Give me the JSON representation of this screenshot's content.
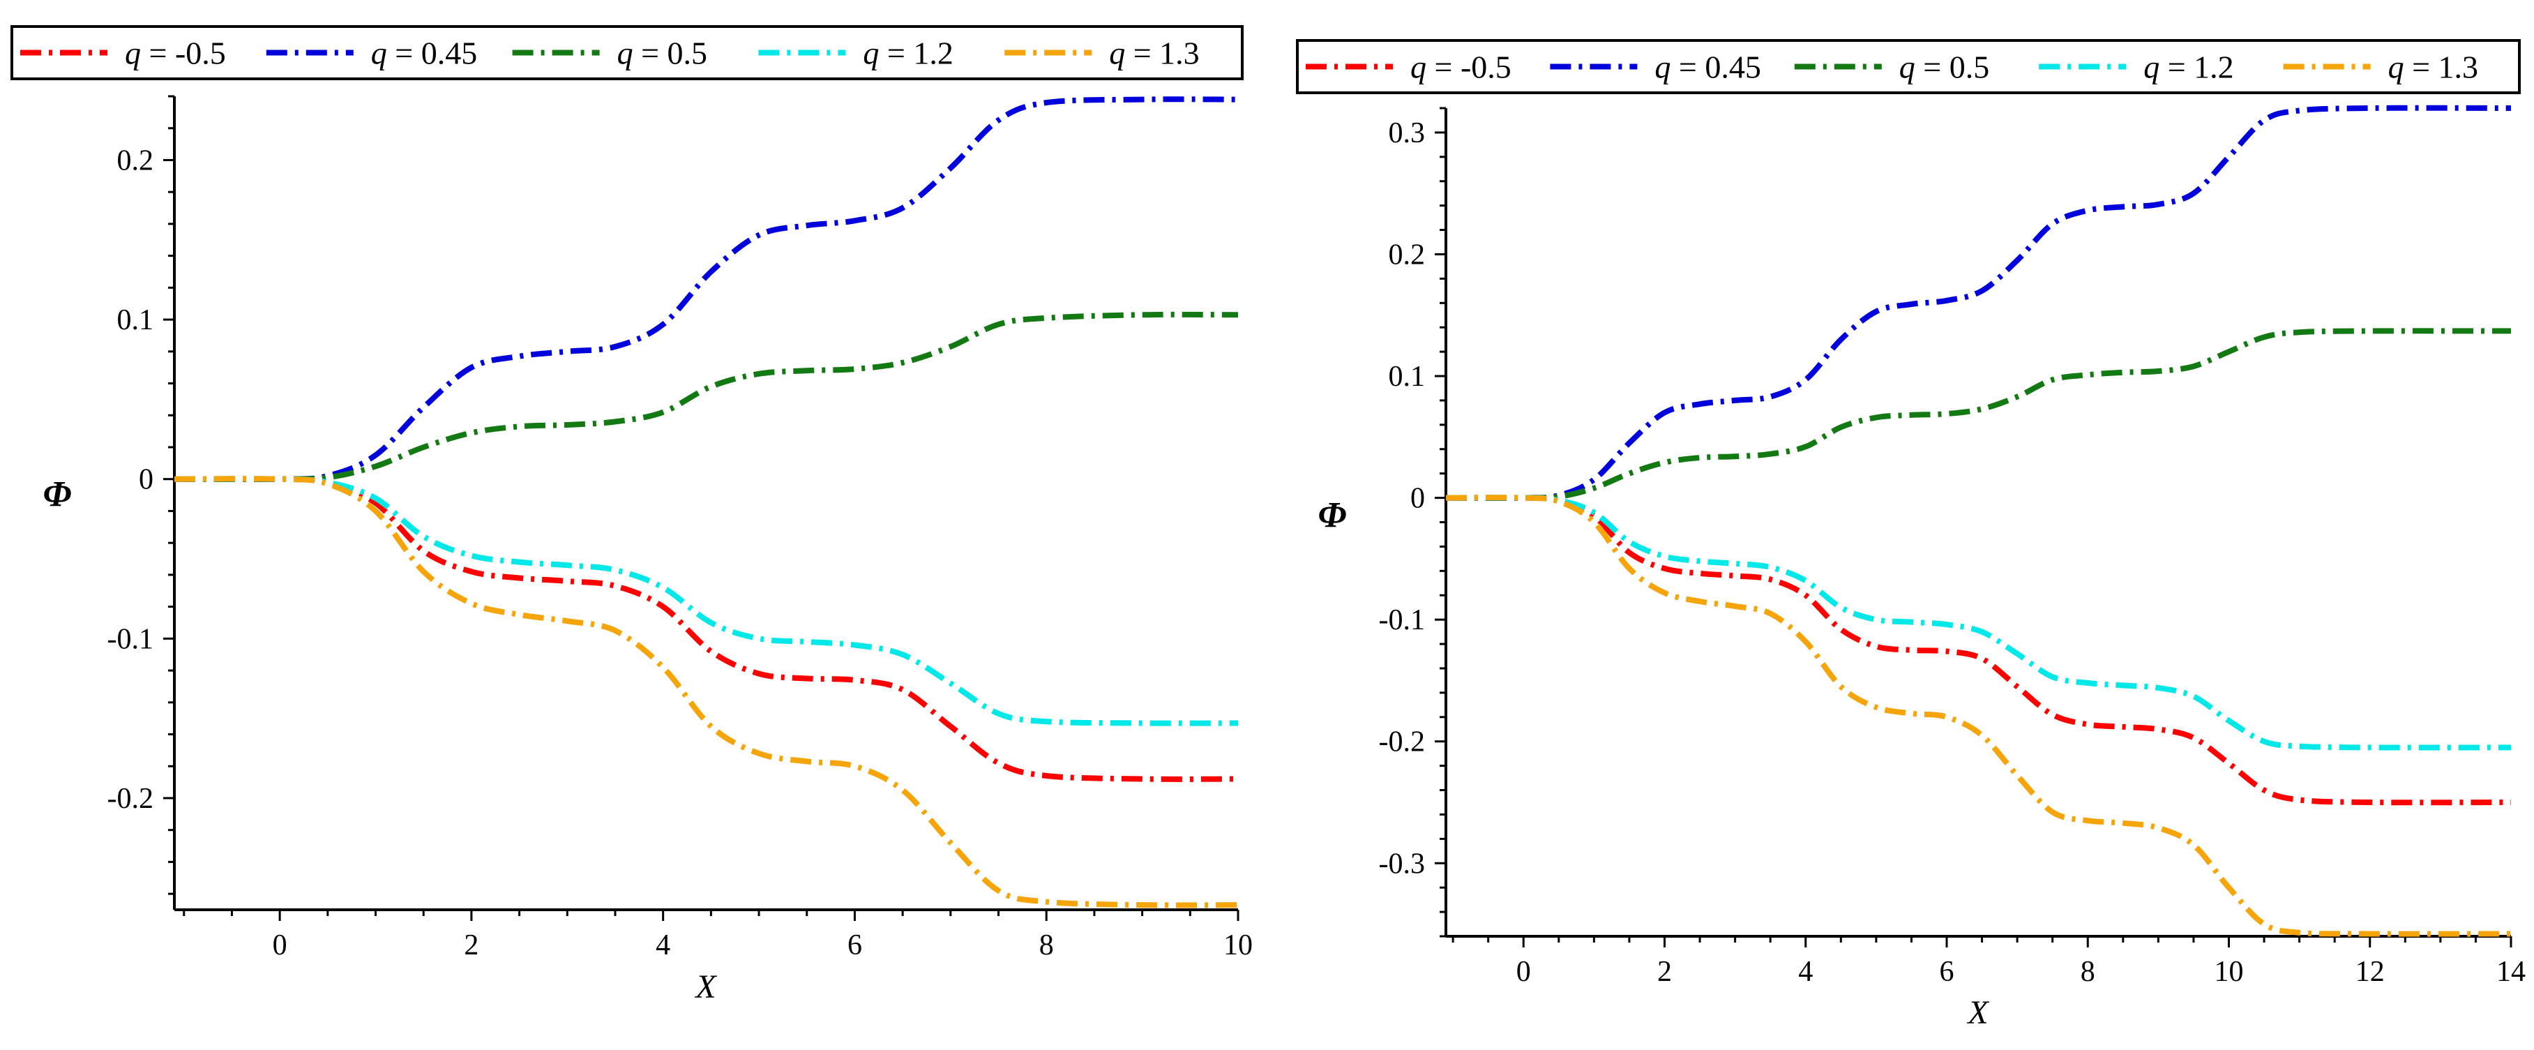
{
  "colors": {
    "red": "#ff0000",
    "blue": "#0000dd",
    "green": "#137a13",
    "cyan": "#00e8e8",
    "orange": "#f5a50a",
    "axis": "#000000"
  },
  "chart_data": [
    {
      "type": "line",
      "title": "",
      "xlabel": "X",
      "ylabel": "Φ",
      "xlim": [
        -1.1,
        10
      ],
      "ylim": [
        -0.27,
        0.24
      ],
      "x_ticks": [
        0,
        2,
        4,
        6,
        8,
        10
      ],
      "x_tick_labels": [
        "0",
        "2",
        "4",
        "6",
        "8",
        "10"
      ],
      "y_ticks": [
        -0.2,
        -0.1,
        0,
        0.1,
        0.2
      ],
      "y_tick_labels": [
        "-0.2",
        "-0.1",
        "0",
        "0.1",
        "0.2"
      ],
      "legend": "top",
      "series": [
        {
          "name": "q = -0.5",
          "q_symbol": "q",
          "q_rest": " = -0.5",
          "color_key": "red",
          "points": [
            [
              -1.1,
              0
            ],
            [
              0,
              0
            ],
            [
              0.5,
              -0.002
            ],
            [
              1,
              -0.015
            ],
            [
              1.5,
              -0.045
            ],
            [
              2,
              -0.058
            ],
            [
              2.5,
              -0.062
            ],
            [
              3,
              -0.064
            ],
            [
              3.5,
              -0.067
            ],
            [
              4,
              -0.08
            ],
            [
              4.5,
              -0.108
            ],
            [
              5,
              -0.122
            ],
            [
              5.5,
              -0.125
            ],
            [
              6,
              -0.126
            ],
            [
              6.5,
              -0.132
            ],
            [
              7,
              -0.155
            ],
            [
              7.5,
              -0.178
            ],
            [
              8,
              -0.186
            ],
            [
              9,
              -0.188
            ],
            [
              10,
              -0.188
            ]
          ]
        },
        {
          "name": "q = 0.45",
          "q_symbol": "q",
          "q_rest": " = 0.45",
          "color_key": "blue",
          "points": [
            [
              -1.1,
              0
            ],
            [
              0,
              0
            ],
            [
              0.5,
              0.002
            ],
            [
              1,
              0.015
            ],
            [
              1.5,
              0.045
            ],
            [
              2,
              0.07
            ],
            [
              2.5,
              0.077
            ],
            [
              3,
              0.08
            ],
            [
              3.5,
              0.083
            ],
            [
              4,
              0.097
            ],
            [
              4.5,
              0.13
            ],
            [
              5,
              0.153
            ],
            [
              5.5,
              0.159
            ],
            [
              6,
              0.162
            ],
            [
              6.5,
              0.17
            ],
            [
              7,
              0.195
            ],
            [
              7.5,
              0.225
            ],
            [
              8,
              0.236
            ],
            [
              9,
              0.238
            ],
            [
              10,
              0.238
            ]
          ]
        },
        {
          "name": "q = 0.5",
          "q_symbol": "q",
          "q_rest": " = 0.5",
          "color_key": "green",
          "points": [
            [
              -1.1,
              0
            ],
            [
              0,
              0
            ],
            [
              0.5,
              0.001
            ],
            [
              1,
              0.008
            ],
            [
              1.5,
              0.02
            ],
            [
              2,
              0.029
            ],
            [
              2.5,
              0.033
            ],
            [
              3,
              0.034
            ],
            [
              3.5,
              0.036
            ],
            [
              4,
              0.042
            ],
            [
              4.5,
              0.058
            ],
            [
              5,
              0.066
            ],
            [
              5.5,
              0.068
            ],
            [
              6,
              0.069
            ],
            [
              6.5,
              0.073
            ],
            [
              7,
              0.083
            ],
            [
              7.5,
              0.097
            ],
            [
              8,
              0.101
            ],
            [
              9,
              0.103
            ],
            [
              10,
              0.103
            ]
          ]
        },
        {
          "name": "q = 1.2",
          "q_symbol": "q",
          "q_rest": " = 1.2",
          "color_key": "cyan",
          "points": [
            [
              -1.1,
              0
            ],
            [
              0,
              0
            ],
            [
              0.5,
              -0.002
            ],
            [
              1,
              -0.012
            ],
            [
              1.5,
              -0.036
            ],
            [
              2,
              -0.048
            ],
            [
              2.5,
              -0.052
            ],
            [
              3,
              -0.054
            ],
            [
              3.5,
              -0.057
            ],
            [
              4,
              -0.068
            ],
            [
              4.5,
              -0.09
            ],
            [
              5,
              -0.1
            ],
            [
              5.5,
              -0.102
            ],
            [
              6,
              -0.104
            ],
            [
              6.5,
              -0.11
            ],
            [
              7,
              -0.128
            ],
            [
              7.5,
              -0.147
            ],
            [
              8,
              -0.152
            ],
            [
              9,
              -0.153
            ],
            [
              10,
              -0.153
            ]
          ]
        },
        {
          "name": "q = 1.3",
          "q_symbol": "q",
          "q_rest": " = 1.3",
          "color_key": "orange",
          "points": [
            [
              -1.1,
              0
            ],
            [
              0,
              0
            ],
            [
              0.5,
              -0.003
            ],
            [
              1,
              -0.02
            ],
            [
              1.5,
              -0.058
            ],
            [
              2,
              -0.078
            ],
            [
              2.5,
              -0.085
            ],
            [
              3,
              -0.089
            ],
            [
              3.5,
              -0.095
            ],
            [
              4,
              -0.118
            ],
            [
              4.5,
              -0.155
            ],
            [
              5,
              -0.172
            ],
            [
              5.5,
              -0.177
            ],
            [
              6,
              -0.18
            ],
            [
              6.5,
              -0.195
            ],
            [
              7,
              -0.228
            ],
            [
              7.5,
              -0.258
            ],
            [
              8,
              -0.265
            ],
            [
              9,
              -0.267
            ],
            [
              10,
              -0.267
            ]
          ]
        }
      ]
    },
    {
      "type": "line",
      "title": "",
      "xlabel": "X",
      "ylabel": "Φ",
      "xlim": [
        -1.1,
        14
      ],
      "ylim": [
        -0.36,
        0.32
      ],
      "x_ticks": [
        0,
        2,
        4,
        6,
        8,
        10,
        12,
        14
      ],
      "x_tick_labels": [
        "0",
        "2",
        "4",
        "6",
        "8",
        "10",
        "12",
        "14"
      ],
      "y_ticks": [
        -0.3,
        -0.2,
        -0.1,
        0,
        0.1,
        0.2,
        0.3
      ],
      "y_tick_labels": [
        "-0.3",
        "-0.2",
        "-0.1",
        "0",
        "0.1",
        "0.2",
        "0.3"
      ],
      "legend": "top",
      "series": [
        {
          "name": "q = -0.5",
          "q_symbol": "q",
          "q_rest": " = -0.5",
          "color_key": "red",
          "points": [
            [
              -1.1,
              0
            ],
            [
              0,
              0
            ],
            [
              0.5,
              -0.002
            ],
            [
              1,
              -0.015
            ],
            [
              1.5,
              -0.045
            ],
            [
              2,
              -0.058
            ],
            [
              2.5,
              -0.062
            ],
            [
              3,
              -0.064
            ],
            [
              3.5,
              -0.067
            ],
            [
              4,
              -0.08
            ],
            [
              4.5,
              -0.108
            ],
            [
              5,
              -0.122
            ],
            [
              5.5,
              -0.125
            ],
            [
              6,
              -0.126
            ],
            [
              6.5,
              -0.132
            ],
            [
              7,
              -0.155
            ],
            [
              7.5,
              -0.178
            ],
            [
              8,
              -0.186
            ],
            [
              8.5,
              -0.188
            ],
            [
              9,
              -0.19
            ],
            [
              9.5,
              -0.197
            ],
            [
              10,
              -0.218
            ],
            [
              10.5,
              -0.24
            ],
            [
              11,
              -0.248
            ],
            [
              12,
              -0.25
            ],
            [
              14,
              -0.25
            ]
          ]
        },
        {
          "name": "q = 0.45",
          "q_symbol": "q",
          "q_rest": " = 0.45",
          "color_key": "blue",
          "points": [
            [
              -1.1,
              0
            ],
            [
              0,
              0
            ],
            [
              0.5,
              0.002
            ],
            [
              1,
              0.015
            ],
            [
              1.5,
              0.045
            ],
            [
              2,
              0.07
            ],
            [
              2.5,
              0.077
            ],
            [
              3,
              0.08
            ],
            [
              3.5,
              0.083
            ],
            [
              4,
              0.097
            ],
            [
              4.5,
              0.13
            ],
            [
              5,
              0.153
            ],
            [
              5.5,
              0.159
            ],
            [
              6,
              0.162
            ],
            [
              6.5,
              0.17
            ],
            [
              7,
              0.195
            ],
            [
              7.5,
              0.225
            ],
            [
              8,
              0.236
            ],
            [
              8.5,
              0.239
            ],
            [
              9,
              0.241
            ],
            [
              9.5,
              0.25
            ],
            [
              10,
              0.28
            ],
            [
              10.5,
              0.31
            ],
            [
              11,
              0.318
            ],
            [
              12,
              0.32
            ],
            [
              14,
              0.32
            ]
          ]
        },
        {
          "name": "q = 0.5",
          "q_symbol": "q",
          "q_rest": " = 0.5",
          "color_key": "green",
          "points": [
            [
              -1.1,
              0
            ],
            [
              0,
              0
            ],
            [
              0.5,
              0.001
            ],
            [
              1,
              0.008
            ],
            [
              1.5,
              0.02
            ],
            [
              2,
              0.029
            ],
            [
              2.5,
              0.033
            ],
            [
              3,
              0.034
            ],
            [
              3.5,
              0.036
            ],
            [
              4,
              0.042
            ],
            [
              4.5,
              0.058
            ],
            [
              5,
              0.066
            ],
            [
              5.5,
              0.068
            ],
            [
              6,
              0.069
            ],
            [
              6.5,
              0.073
            ],
            [
              7,
              0.083
            ],
            [
              7.5,
              0.097
            ],
            [
              8,
              0.101
            ],
            [
              8.5,
              0.103
            ],
            [
              9,
              0.104
            ],
            [
              9.5,
              0.108
            ],
            [
              10,
              0.12
            ],
            [
              10.5,
              0.132
            ],
            [
              11,
              0.136
            ],
            [
              12,
              0.137
            ],
            [
              14,
              0.137
            ]
          ]
        },
        {
          "name": "q = 1.2",
          "q_symbol": "q",
          "q_rest": " = 1.2",
          "color_key": "cyan",
          "points": [
            [
              -1.1,
              0
            ],
            [
              0,
              0
            ],
            [
              0.5,
              -0.002
            ],
            [
              1,
              -0.012
            ],
            [
              1.5,
              -0.036
            ],
            [
              2,
              -0.048
            ],
            [
              2.5,
              -0.052
            ],
            [
              3,
              -0.054
            ],
            [
              3.5,
              -0.057
            ],
            [
              4,
              -0.068
            ],
            [
              4.5,
              -0.09
            ],
            [
              5,
              -0.1
            ],
            [
              5.5,
              -0.102
            ],
            [
              6,
              -0.104
            ],
            [
              6.5,
              -0.11
            ],
            [
              7,
              -0.128
            ],
            [
              7.5,
              -0.147
            ],
            [
              8,
              -0.152
            ],
            [
              8.5,
              -0.154
            ],
            [
              9,
              -0.156
            ],
            [
              9.5,
              -0.163
            ],
            [
              10,
              -0.183
            ],
            [
              10.5,
              -0.2
            ],
            [
              11,
              -0.204
            ],
            [
              12,
              -0.205
            ],
            [
              14,
              -0.205
            ]
          ]
        },
        {
          "name": "q = 1.3",
          "q_symbol": "q",
          "q_rest": " = 1.3",
          "color_key": "orange",
          "points": [
            [
              -1.1,
              0
            ],
            [
              0,
              0
            ],
            [
              0.5,
              -0.003
            ],
            [
              1,
              -0.02
            ],
            [
              1.5,
              -0.058
            ],
            [
              2,
              -0.078
            ],
            [
              2.5,
              -0.085
            ],
            [
              3,
              -0.089
            ],
            [
              3.5,
              -0.095
            ],
            [
              4,
              -0.118
            ],
            [
              4.5,
              -0.155
            ],
            [
              5,
              -0.172
            ],
            [
              5.5,
              -0.177
            ],
            [
              6,
              -0.18
            ],
            [
              6.5,
              -0.195
            ],
            [
              7,
              -0.228
            ],
            [
              7.5,
              -0.258
            ],
            [
              8,
              -0.265
            ],
            [
              8.5,
              -0.267
            ],
            [
              9,
              -0.271
            ],
            [
              9.5,
              -0.285
            ],
            [
              10,
              -0.32
            ],
            [
              10.5,
              -0.35
            ],
            [
              11,
              -0.357
            ],
            [
              12,
              -0.358
            ],
            [
              14,
              -0.358
            ]
          ]
        }
      ]
    }
  ]
}
